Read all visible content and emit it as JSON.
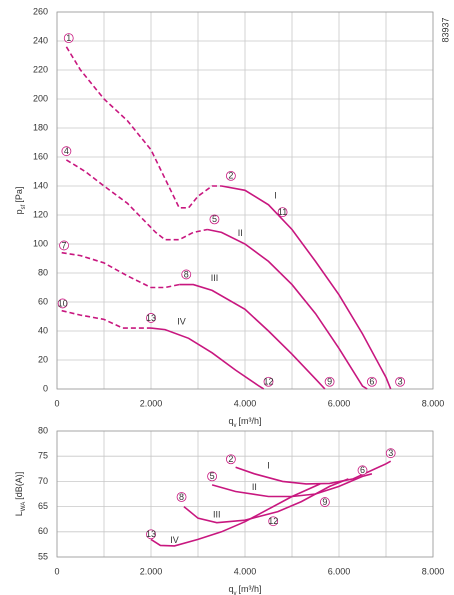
{
  "chart_data": [
    {
      "type": "line",
      "code": "83937",
      "x_label": {
        "symbol": "q",
        "subscript": "v",
        "unit": "[m³/h]"
      },
      "y_label": {
        "symbol": "p",
        "subscript": "sf",
        "unit": "[Pa]"
      },
      "color": "#c8177f",
      "grid": true,
      "xlim": [
        0,
        8000
      ],
      "xgrid": [
        0,
        1000,
        2000,
        3000,
        4000,
        5000,
        6000,
        7000,
        8000
      ],
      "xticks": [
        0,
        {
          "value": 2000,
          "label": "2.000"
        },
        {
          "value": 4000,
          "label": "4.000"
        },
        {
          "value": 6000,
          "label": "6.000"
        },
        {
          "value": 8000,
          "label": "8.000"
        }
      ],
      "ylim": [
        0,
        260
      ],
      "yticks": [
        0,
        20,
        40,
        60,
        80,
        100,
        120,
        140,
        160,
        180,
        200,
        220,
        240,
        260
      ],
      "series": [
        {
          "name": "I",
          "label_at": [
            4650,
            133
          ],
          "segments": [
            {
              "style": "dashed",
              "x": [
                200,
                500,
                1000,
                1500,
                2000,
                2300,
                2600,
                2800,
                3000,
                3300,
                3500
              ],
              "values": [
                236,
                220,
                200,
                185,
                165,
                145,
                125,
                125,
                133,
                140,
                140
              ]
            },
            {
              "style": "solid",
              "x": [
                3500,
                4000,
                4500,
                5000,
                5500,
                6000,
                6500,
                7000,
                7100
              ],
              "values": [
                140,
                137,
                127,
                110,
                88,
                65,
                38,
                8,
                0
              ]
            }
          ]
        },
        {
          "name": "II",
          "label_at": [
            3900,
            107
          ],
          "segments": [
            {
              "style": "dashed",
              "x": [
                200,
                600,
                1000,
                1500,
                1800,
                2100,
                2300,
                2600,
                2900,
                3200
              ],
              "values": [
                158,
                150,
                140,
                128,
                118,
                108,
                103,
                103,
                108,
                110
              ]
            },
            {
              "style": "solid",
              "x": [
                3200,
                3500,
                4000,
                4500,
                5000,
                5500,
                6000,
                6500,
                6600
              ],
              "values": [
                110,
                108,
                100,
                88,
                72,
                52,
                28,
                2,
                0
              ]
            }
          ]
        },
        {
          "name": "III",
          "label_at": [
            3350,
            76
          ],
          "segments": [
            {
              "style": "dashed",
              "x": [
                100,
                500,
                1000,
                1500,
                2000,
                2300,
                2600
              ],
              "values": [
                94,
                92,
                87,
                78,
                70,
                70,
                72
              ]
            },
            {
              "style": "solid",
              "x": [
                2600,
                2900,
                3300,
                4000,
                4500,
                5000,
                5500,
                5700
              ],
              "values": [
                72,
                72,
                68,
                55,
                40,
                24,
                7,
                0
              ]
            }
          ]
        },
        {
          "name": "IV",
          "label_at": [
            2650,
            46
          ],
          "segments": [
            {
              "style": "dashed",
              "x": [
                100,
                500,
                1000,
                1400,
                1800,
                2000
              ],
              "values": [
                54,
                51,
                48,
                42,
                42,
                42
              ]
            },
            {
              "style": "solid",
              "x": [
                2000,
                2300,
                2800,
                3300,
                3800,
                4300,
                4400
              ],
              "values": [
                42,
                41,
                35,
                25,
                13,
                2,
                0
              ]
            }
          ]
        }
      ],
      "markers": [
        {
          "text": "1",
          "x": 250,
          "y": 242
        },
        {
          "text": "2",
          "x": 3700,
          "y": 147
        },
        {
          "text": "11",
          "x": 4800,
          "y": 122
        },
        {
          "text": "3",
          "x": 7300,
          "y": 5
        },
        {
          "text": "4",
          "x": 200,
          "y": 164
        },
        {
          "text": "5",
          "x": 3350,
          "y": 117
        },
        {
          "text": "6",
          "x": 6700,
          "y": 5
        },
        {
          "text": "7",
          "x": 150,
          "y": 99
        },
        {
          "text": "8",
          "x": 2750,
          "y": 79
        },
        {
          "text": "9",
          "x": 5800,
          "y": 5
        },
        {
          "text": "10",
          "x": 120,
          "y": 59
        },
        {
          "text": "13",
          "x": 2000,
          "y": 49
        },
        {
          "text": "12",
          "x": 4500,
          "y": 5
        }
      ]
    },
    {
      "type": "line",
      "x_label": {
        "symbol": "q",
        "subscript": "v",
        "unit": "[m³/h]"
      },
      "y_label": {
        "symbol": "L",
        "subscript": "WA",
        "unit": "[dB(A)]"
      },
      "color": "#c8177f",
      "grid": true,
      "xlim": [
        0,
        8000
      ],
      "xgrid": [
        0,
        1000,
        2000,
        3000,
        4000,
        5000,
        6000,
        7000,
        8000
      ],
      "xticks": [
        0,
        {
          "value": 2000,
          "label": "2.000"
        },
        {
          "value": 4000,
          "label": "4.000"
        },
        {
          "value": 6000,
          "label": "6.000"
        },
        {
          "value": 8000,
          "label": "8.000"
        }
      ],
      "ylim": [
        55,
        80
      ],
      "yticks": [
        55,
        60,
        65,
        70,
        75,
        80
      ],
      "series": [
        {
          "name": "I",
          "label_at": [
            4500,
            73
          ],
          "segments": [
            {
              "style": "solid",
              "x": [
                3800,
                4200,
                4800,
                5300,
                5800,
                6300,
                7000,
                7100
              ],
              "values": [
                72.8,
                71.5,
                70,
                69.5,
                69.6,
                70.5,
                73.5,
                74
              ]
            }
          ]
        },
        {
          "name": "II",
          "label_at": [
            4200,
            68.8
          ],
          "segments": [
            {
              "style": "solid",
              "x": [
                3300,
                3800,
                4500,
                5000,
                5500,
                6000,
                6500,
                6700
              ],
              "values": [
                69.3,
                68,
                67,
                67,
                67.5,
                69,
                71,
                71.5
              ]
            }
          ]
        },
        {
          "name": "III",
          "label_at": [
            3400,
            63.3
          ],
          "segments": [
            {
              "style": "solid",
              "x": [
                2700,
                3000,
                3400,
                4000,
                4700,
                5200,
                5800,
                6200
              ],
              "values": [
                65,
                62.7,
                61.8,
                62.3,
                64,
                66,
                69,
                70.5
              ]
            }
          ]
        },
        {
          "name": "IV",
          "label_at": [
            2500,
            58.2
          ],
          "segments": [
            {
              "style": "solid",
              "x": [
                2000,
                2200,
                2500,
                3000,
                3500,
                4000,
                4500,
                5000,
                5600
              ],
              "values": [
                58.5,
                57.3,
                57.2,
                58.5,
                60,
                62,
                64.5,
                67,
                69.5
              ]
            }
          ]
        }
      ],
      "markers": [
        {
          "text": "2",
          "x": 3700,
          "y": 74.4
        },
        {
          "text": "3",
          "x": 7100,
          "y": 75.6
        },
        {
          "text": "5",
          "x": 3300,
          "y": 71
        },
        {
          "text": "6",
          "x": 6500,
          "y": 72.2
        },
        {
          "text": "8",
          "x": 2650,
          "y": 66.9
        },
        {
          "text": "9",
          "x": 5700,
          "y": 65.9
        },
        {
          "text": "12",
          "x": 4600,
          "y": 62.1
        },
        {
          "text": "13",
          "x": 2000,
          "y": 59.5
        }
      ]
    }
  ]
}
